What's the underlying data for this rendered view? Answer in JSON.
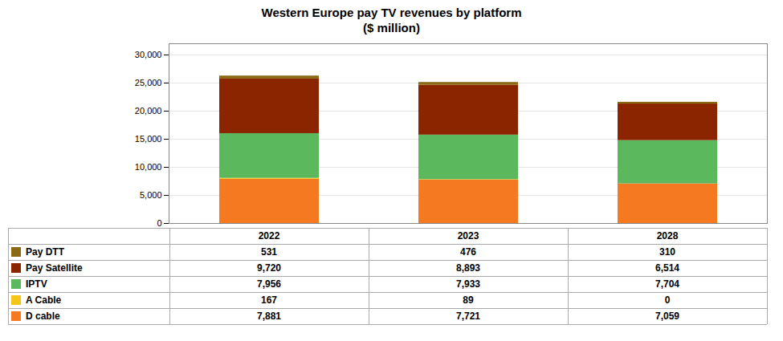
{
  "chart_data": {
    "type": "bar",
    "title": "Western Europe pay TV revenues by platform",
    "subtitle": "($ million)",
    "categories": [
      "2022",
      "2023",
      "2028"
    ],
    "series": [
      {
        "name": "D cable",
        "color": "#F47920",
        "values": [
          7881,
          7721,
          7059
        ],
        "value_labels": [
          "7,881",
          "7,721",
          "7,059"
        ]
      },
      {
        "name": "A Cable",
        "color": "#F5C518",
        "values": [
          167,
          89,
          0
        ],
        "value_labels": [
          "167",
          "89",
          "0"
        ]
      },
      {
        "name": "IPTV",
        "color": "#5CB85C",
        "values": [
          7956,
          7933,
          7704
        ],
        "value_labels": [
          "7,956",
          "7,933",
          "7,704"
        ]
      },
      {
        "name": "Pay Satellite",
        "color": "#8B2500",
        "values": [
          9720,
          8893,
          6514
        ],
        "value_labels": [
          "9,720",
          "8,893",
          "6,514"
        ]
      },
      {
        "name": "Pay DTT",
        "color": "#8B6914",
        "values": [
          531,
          476,
          310
        ],
        "value_labels": [
          "531",
          "476",
          "310"
        ]
      }
    ],
    "stacked": true,
    "ylim": [
      0,
      32000
    ],
    "yticks": [
      0,
      {
        "value": 5000,
        "label": "5,000"
      },
      {
        "value": 10000,
        "label": "10,000"
      },
      {
        "value": 15000,
        "label": "15,000"
      },
      {
        "value": 20000,
        "label": "20,000"
      },
      {
        "value": 25000,
        "label": "25,000"
      },
      {
        "value": 30000,
        "label": "30,000"
      }
    ],
    "grid": true,
    "tick_labels": "y"
  }
}
